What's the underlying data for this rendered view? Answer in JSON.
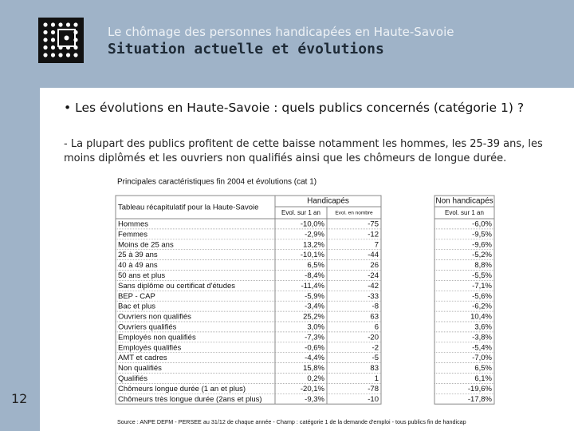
{
  "header": {
    "subtitle": "Le chômage des personnes handicapées en Haute-Savoie",
    "title": "Situation actuelle et évolutions"
  },
  "bullet": "Les évolutions en Haute-Savoie : quels publics concernés (catégorie 1) ?",
  "paragraph": "- La plupart des publics profitent de cette baisse notamment les hommes, les 25-39 ans, les moins diplômés et les ouvriers non qualifiés ainsi que les chômeurs de longue durée.",
  "table": {
    "caption": "Principales caractéristiques fin 2004 et évolutions (cat 1)",
    "corner": "Tableau récapitulatif pour la Haute-Savoie",
    "groups": [
      "Handicapés",
      "Non handicapés"
    ],
    "subheaders": [
      "Evol. sur 1 an",
      "Evol. en nombre",
      "Evol. sur 1 an"
    ],
    "rows": [
      {
        "label": "Hommes",
        "values": [
          "-10,0%",
          "-75",
          "-6,0%"
        ]
      },
      {
        "label": "Femmes",
        "values": [
          "-2,9%",
          "-12",
          "-9,5%"
        ]
      },
      {
        "label": "Moins de 25 ans",
        "values": [
          "13,2%",
          "7",
          "-9,6%"
        ]
      },
      {
        "label": "25 à 39 ans",
        "values": [
          "-10,1%",
          "-44",
          "-5,2%"
        ]
      },
      {
        "label": "40 à 49 ans",
        "values": [
          "6,5%",
          "26",
          "8,8%"
        ]
      },
      {
        "label": "50 ans et plus",
        "values": [
          "-8,4%",
          "-24",
          "-5,5%"
        ]
      },
      {
        "label": "Sans diplôme ou certificat d'études",
        "values": [
          "-11,4%",
          "-42",
          "-7,1%"
        ]
      },
      {
        "label": "BEP - CAP",
        "values": [
          "-5,9%",
          "-33",
          "-5,6%"
        ]
      },
      {
        "label": "Bac et plus",
        "values": [
          "-3,4%",
          "-8",
          "-6,2%"
        ]
      },
      {
        "label": "Ouvriers non qualifiés",
        "values": [
          "25,2%",
          "63",
          "10,4%"
        ]
      },
      {
        "label": "Ouvriers qualifiés",
        "values": [
          "3,0%",
          "6",
          "3,6%"
        ]
      },
      {
        "label": "Employés non qualifiés",
        "values": [
          "-7,3%",
          "-20",
          "-3,8%"
        ]
      },
      {
        "label": "Employés qualifiés",
        "values": [
          "-0,6%",
          "-2",
          "-5,4%"
        ]
      },
      {
        "label": "AMT et cadres",
        "values": [
          "-4,4%",
          "-5",
          "-7,0%"
        ]
      },
      {
        "label": "Non qualifiés",
        "values": [
          "15,8%",
          "83",
          "6,5%"
        ]
      },
      {
        "label": "Qualifiés",
        "values": [
          "0,2%",
          "1",
          "6,1%"
        ]
      },
      {
        "label": "Chômeurs longue durée (1 an et plus)",
        "values": [
          "-20,1%",
          "-78",
          "-19,6%"
        ]
      },
      {
        "label": "Chômeurs très longue durée (2ans et plus)",
        "values": [
          "-9,3%",
          "-10",
          "-17,8%"
        ]
      }
    ],
    "source": "Source : ANPE DEFM - PERSEE au 31/12 de chaque année - Champ : catégorie 1 de la demande d'emploi - tous publics fin de handicap"
  },
  "page_number": "12"
}
